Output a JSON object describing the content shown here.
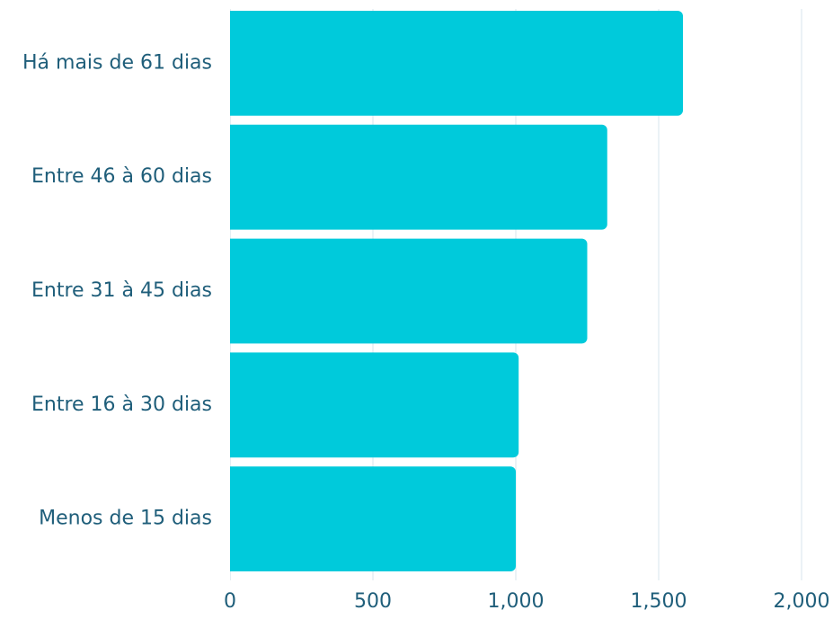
{
  "chart_data": {
    "type": "bar",
    "orientation": "horizontal",
    "categories": [
      "Há mais de 61 dias",
      "Entre 46 à 60 dias",
      "Entre 31 à 45 dias",
      "Entre 16 à 30 dias",
      "Menos de 15 dias"
    ],
    "values": [
      1585,
      1320,
      1250,
      1010,
      1000
    ],
    "xlim": [
      0,
      2000
    ],
    "xticks": [
      0,
      500,
      1000,
      1500,
      2000
    ],
    "xtick_labels": [
      "0",
      "500",
      "1,000",
      "1,500",
      "2,000"
    ],
    "title": "",
    "xlabel": "",
    "ylabel": "",
    "grid": "vertical",
    "colors": {
      "bar": "#00CADB",
      "text": "#1F5E7A",
      "grid": "#D7E6EC",
      "axis": "#C9DCE4"
    }
  }
}
